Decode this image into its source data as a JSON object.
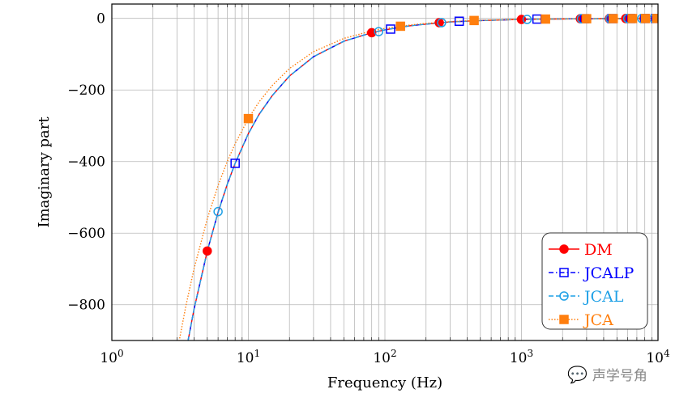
{
  "chart_data": {
    "type": "line",
    "xlabel": "Frequency (Hz)",
    "ylabel": "Imaginary part",
    "xscale": "log",
    "xlim": [
      1,
      10000
    ],
    "ylim": [
      -900,
      40
    ],
    "grid": true,
    "xticks": [
      {
        "base": "10",
        "exp": "0",
        "v": 1
      },
      {
        "base": "10",
        "exp": "1",
        "v": 10
      },
      {
        "base": "10",
        "exp": "2",
        "v": 100
      },
      {
        "base": "10",
        "exp": "3",
        "v": 1000
      },
      {
        "base": "10",
        "exp": "4",
        "v": 10000
      }
    ],
    "yticks": [
      {
        "label": "0",
        "v": 0
      },
      {
        "label": "−200",
        "v": -200
      },
      {
        "label": "−400",
        "v": -400
      },
      {
        "label": "−600",
        "v": -600
      },
      {
        "label": "−800",
        "v": -800
      }
    ],
    "legend_placement": "bottom-right",
    "curve_x": [
      3,
      3.5,
      4,
      5,
      6,
      7,
      8,
      10,
      12,
      15,
      20,
      30,
      50,
      80,
      100,
      150,
      200,
      300,
      500,
      1000,
      2000,
      5000,
      10000
    ],
    "series": [
      {
        "name": "DM",
        "color": "#ff0000",
        "dash": "",
        "marker": "filled-circle",
        "y": [
          -1083,
          -929,
          -813,
          -650,
          -542,
          -464,
          -405,
          -322,
          -268,
          -215,
          -161,
          -107,
          -64,
          -40,
          -32,
          -21,
          -16,
          -10,
          -6,
          -3,
          -1.5,
          -0.6,
          -0.3
        ],
        "marker_x": [
          5,
          80,
          250,
          1000,
          2700,
          4400,
          5800,
          7900,
          9700
        ],
        "marker_y": [
          -650,
          -40,
          -12,
          -3,
          -1,
          -0.7,
          -0.5,
          -0.4,
          -0.3
        ]
      },
      {
        "name": "JCALP",
        "color": "#0000ff",
        "dash": "6,3,1.5,3",
        "marker": "open-square",
        "y": [
          -1083,
          -929,
          -813,
          -650,
          -542,
          -464,
          -405,
          -322,
          -268,
          -215,
          -161,
          -107,
          -64,
          -40,
          -32,
          -21,
          -16,
          -10,
          -6,
          -3,
          -1.5,
          -0.6,
          -0.3
        ],
        "marker_x": [
          8,
          110,
          350,
          1300,
          2900,
          4600,
          6300,
          8000,
          9600
        ],
        "marker_y": [
          -405,
          -30,
          -8,
          -2,
          -1,
          -0.7,
          -0.5,
          -0.4,
          -0.3
        ]
      },
      {
        "name": "JCAL",
        "color": "#1ea0e6",
        "dash": "6,3",
        "marker": "open-circle",
        "y": [
          -1083,
          -929,
          -813,
          -650,
          -542,
          -464,
          -405,
          -322,
          -268,
          -215,
          -161,
          -107,
          -64,
          -40,
          -32,
          -21,
          -16,
          -10,
          -6,
          -3,
          -1.5,
          -0.6,
          -0.3
        ],
        "marker_x": [
          6,
          90,
          260,
          1100,
          2750,
          4450,
          6000,
          7600,
          9300
        ],
        "marker_y": [
          -540,
          -37,
          -12,
          -3,
          -1,
          -0.7,
          -0.5,
          -0.4,
          -0.3
        ]
      },
      {
        "name": "JCA",
        "color": "#ff7f0e",
        "dash": "1.5,2",
        "marker": "filled-square",
        "y": [
          -933,
          -800,
          -700,
          -560,
          -467,
          -400,
          -350,
          -280,
          -233,
          -187,
          -140,
          -93,
          -56,
          -35,
          -28,
          -19,
          -14,
          -9,
          -5.5,
          -3,
          -1.5,
          -0.6,
          -0.3
        ],
        "marker_x": [
          10,
          130,
          450,
          1500,
          3000,
          4700,
          6500,
          8100,
          9800
        ],
        "marker_y": [
          -280,
          -22,
          -6,
          -2,
          -1,
          -0.7,
          -0.5,
          -0.4,
          -0.3
        ]
      }
    ]
  },
  "watermark": "声学号角"
}
